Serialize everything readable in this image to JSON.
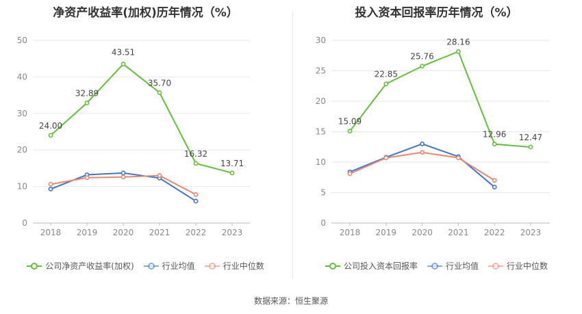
{
  "chart_data": [
    {
      "type": "line",
      "title": "净资产收益率(加权)历年情况（%）",
      "categories": [
        "2018",
        "2019",
        "2020",
        "2021",
        "2022",
        "2023"
      ],
      "ylim": [
        0,
        50
      ],
      "yticks": [
        0,
        10,
        20,
        30,
        40,
        50
      ],
      "grid": true,
      "legend_position": "bottom",
      "series": [
        {
          "name": "公司净资产收益率(加权)",
          "color": "#5ec234",
          "values": [
            24.0,
            32.89,
            43.51,
            35.7,
            16.32,
            13.71
          ],
          "labels": [
            "24.00",
            "32.89",
            "43.51",
            "35.70",
            "16.32",
            "13.71"
          ]
        },
        {
          "name": "行业均值",
          "color": "#3a75d6",
          "values": [
            9.3,
            13.2,
            13.7,
            12.3,
            6.0,
            null
          ]
        },
        {
          "name": "行业中位数",
          "color": "#f0876a",
          "values": [
            10.6,
            12.4,
            12.6,
            13.0,
            7.8,
            null
          ]
        }
      ]
    },
    {
      "type": "line",
      "title": "投入资本回报率历年情况（%）",
      "categories": [
        "2018",
        "2019",
        "2020",
        "2021",
        "2022",
        "2023"
      ],
      "ylim": [
        0,
        30
      ],
      "yticks": [
        0,
        5,
        10,
        15,
        20,
        25,
        30
      ],
      "grid": true,
      "legend_position": "bottom",
      "series": [
        {
          "name": "公司投入资本回报率",
          "color": "#5ec234",
          "values": [
            15.09,
            22.85,
            25.76,
            28.16,
            12.96,
            12.47
          ],
          "labels": [
            "15.09",
            "22.85",
            "25.76",
            "28.16",
            "12.96",
            "12.47"
          ]
        },
        {
          "name": "行业均值",
          "color": "#3a75d6",
          "values": [
            8.4,
            10.8,
            13.0,
            10.9,
            5.9,
            null
          ]
        },
        {
          "name": "行业中位数",
          "color": "#f0876a",
          "values": [
            8.1,
            10.7,
            11.6,
            10.7,
            7.0,
            null
          ]
        }
      ]
    }
  ],
  "source": "数据来源：恒生聚源"
}
